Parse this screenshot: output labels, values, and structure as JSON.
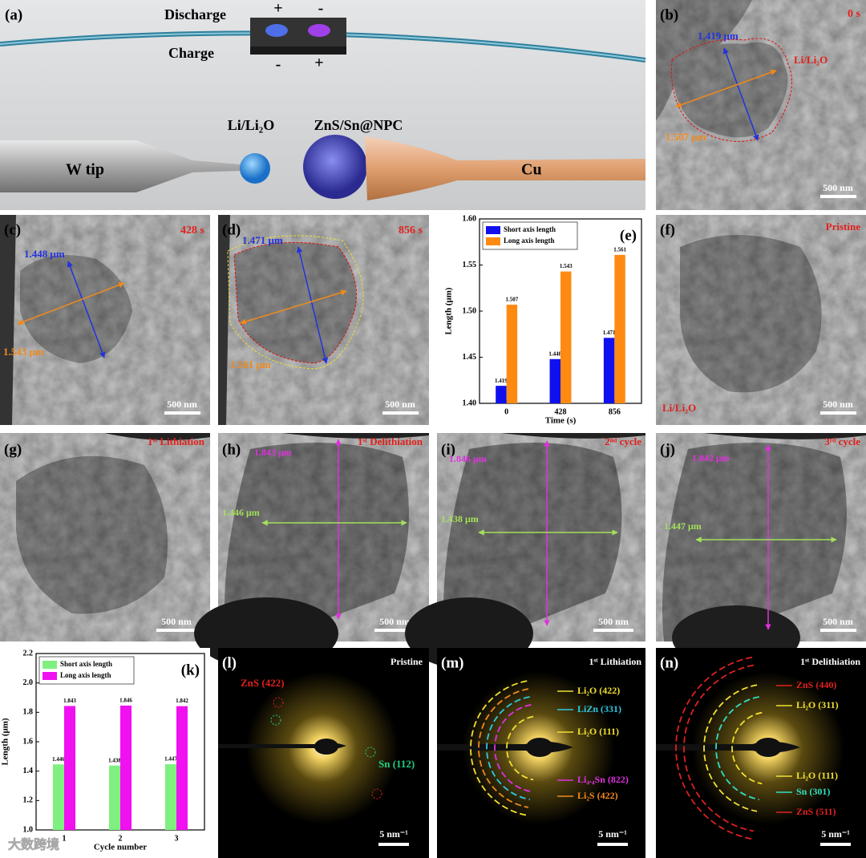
{
  "figure": {
    "a": {
      "label": "(a)",
      "discharge": "Discharge",
      "charge": "Charge",
      "top_plus": "+",
      "top_minus": "-",
      "bottom_minus": "-",
      "bottom_plus": "+",
      "li": "Li/Li₂O",
      "zns": "ZnS/Sn@NPC",
      "wtip": "W tip",
      "cu": "Cu"
    },
    "b": {
      "label": "(b)",
      "time": "0 s",
      "short": "1.419 μm",
      "long": "1.507 μm",
      "region": "Li/Li₂O",
      "scale": "500 nm"
    },
    "c": {
      "label": "(c)",
      "time": "428 s",
      "short": "1.448 μm",
      "long": "1.543 μm",
      "scale": "500 nm"
    },
    "d": {
      "label": "(d)",
      "time": "856 s",
      "short": "1.471 μm",
      "long": "1.561 μm",
      "scale": "500 nm"
    },
    "f": {
      "label": "(f)",
      "state": "Pristine",
      "region": "Li/Li₂O",
      "scale": "500 nm"
    },
    "g": {
      "label": "(g)",
      "state": "1ˢᵗ Lithiation",
      "scale": "500 nm"
    },
    "h": {
      "label": "(h)",
      "state": "1ˢᵗ Delithiation",
      "long": "1.843 μm",
      "short": "1.446 μm",
      "scale": "500 nm"
    },
    "i": {
      "label": "(i)",
      "state": "2ⁿᵈ cycle",
      "long": "1.846 μm",
      "short": "1.438 μm",
      "scale": "500 nm"
    },
    "j": {
      "label": "(j)",
      "state": "3ʳᵈ cycle",
      "long": "1.842 μm",
      "short": "1.447 μm",
      "scale": "500 nm"
    },
    "l": {
      "label": "(l)",
      "state": "Pristine",
      "ring1": "ZnS (422)",
      "ring2": "Sn (112)",
      "scale": "5 nm⁻¹"
    },
    "m": {
      "label": "(m)",
      "state": "1ˢᵗ Lithiation",
      "rings": [
        "Li₂O (422)",
        "LiZn (331)",
        "Li₂O (111)",
        "Li₄.₄Sn (822)",
        "Li₂S (422)"
      ],
      "scale": "5 nm⁻¹"
    },
    "n": {
      "label": "(n)",
      "state": "1ˢᵗ Delithiation",
      "rings": [
        "ZnS (440)",
        "Li₂O (311)",
        "Li₂O (111)",
        "Sn (301)",
        "ZnS (511)"
      ],
      "scale": "5 nm⁻¹"
    },
    "watermark": "大数跨境"
  },
  "chart_data": [
    {
      "type": "bar",
      "label": "(e)",
      "xlabel": "Time (s)",
      "ylabel": "Length (μm)",
      "categories": [
        "0",
        "428",
        "856"
      ],
      "series": [
        {
          "name": "Short axis length",
          "color": "#1010ee",
          "values": [
            1.419,
            1.448,
            1.471
          ]
        },
        {
          "name": "Long axis length",
          "color": "#ff8a12",
          "values": [
            1.507,
            1.543,
            1.561
          ]
        }
      ],
      "ylim": [
        1.4,
        1.6
      ],
      "yticks": [
        {
          "value": 1.4,
          "label": "1.40"
        },
        1.45,
        {
          "value": 1.5,
          "label": "1.50"
        },
        1.55,
        {
          "value": 1.6,
          "label": "1.60"
        }
      ],
      "legend": "upper left"
    },
    {
      "type": "bar",
      "label": "(k)",
      "xlabel": "Cycle number",
      "ylabel": "Length (μm)",
      "categories": [
        "1",
        "2",
        "3"
      ],
      "series": [
        {
          "name": "Short axis length",
          "color": "#7ff07f",
          "values": [
            1.446,
            1.438,
            1.447
          ]
        },
        {
          "name": "Long axis length",
          "color": "#f010f0",
          "values": [
            1.843,
            1.846,
            1.842
          ]
        }
      ],
      "ylim": [
        1.0,
        2.2
      ],
      "yticks": [
        {
          "value": 1.0,
          "label": "1.0"
        },
        1.2,
        1.4,
        1.6,
        1.8,
        {
          "value": 2.0,
          "label": "2.0"
        },
        2.2
      ],
      "legend": "upper left"
    }
  ]
}
